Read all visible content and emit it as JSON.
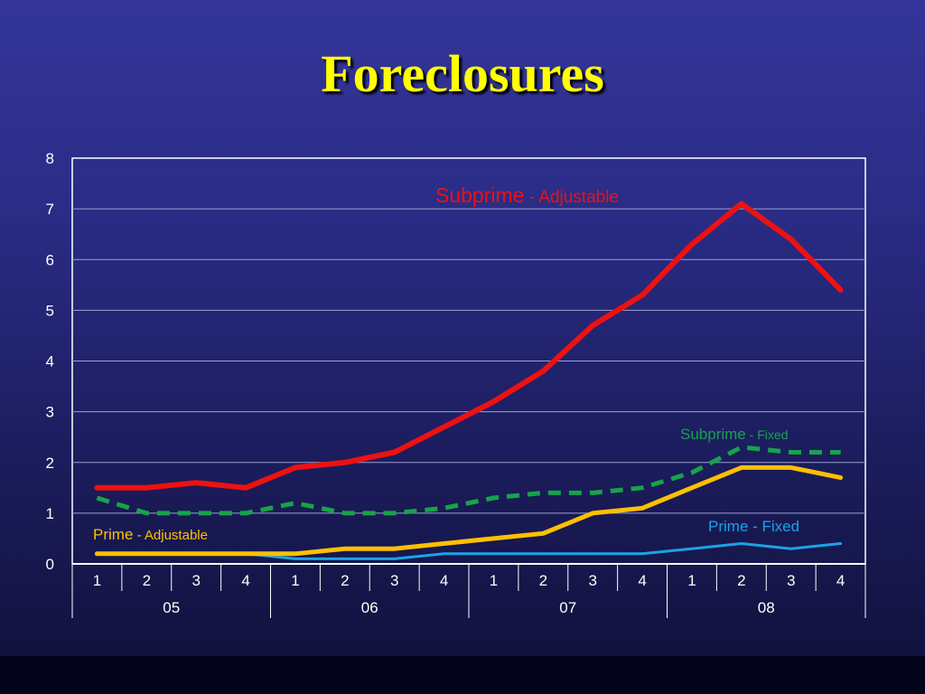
{
  "title": "Foreclosures",
  "chart_data": {
    "type": "line",
    "title": "Foreclosures",
    "x_quarters": [
      "1",
      "2",
      "3",
      "4",
      "1",
      "2",
      "3",
      "4",
      "1",
      "2",
      "3",
      "4",
      "1",
      "2",
      "3",
      "4"
    ],
    "x_years": [
      "05",
      "06",
      "07",
      "08"
    ],
    "ylim": [
      0,
      8
    ],
    "yticks": [
      "0",
      "1",
      "2",
      "3",
      "4",
      "5",
      "6",
      "7",
      "8"
    ],
    "grid": true,
    "series": [
      {
        "name_main": "Subprime",
        "name_sub": " - Adjustable",
        "color": "#ee1111",
        "dash": false,
        "width": 6,
        "values": [
          1.5,
          1.5,
          1.6,
          1.5,
          1.9,
          2.0,
          2.2,
          2.7,
          3.2,
          3.8,
          4.7,
          5.3,
          6.3,
          7.1,
          6.4,
          5.4
        ]
      },
      {
        "name_main": "Subprime",
        "name_sub": " - Fixed",
        "color": "#17a34a",
        "dash": true,
        "width": 5,
        "values": [
          1.3,
          1.0,
          1.0,
          1.0,
          1.2,
          1.0,
          1.0,
          1.1,
          1.3,
          1.4,
          1.4,
          1.5,
          1.8,
          2.3,
          2.2,
          2.2
        ]
      },
      {
        "name_main": "Prime",
        "name_sub": " - Adjustable",
        "color": "#ffc000",
        "dash": false,
        "width": 5,
        "values": [
          0.2,
          0.2,
          0.2,
          0.2,
          0.2,
          0.3,
          0.3,
          0.4,
          0.5,
          0.6,
          1.0,
          1.1,
          1.5,
          1.9,
          1.9,
          1.7
        ]
      },
      {
        "name_main": "Prime",
        "name_sub": " - Fixed",
        "color": "#1aa3e8",
        "dash": false,
        "width": 3,
        "values": [
          0.2,
          0.2,
          0.2,
          0.2,
          0.1,
          0.1,
          0.1,
          0.2,
          0.2,
          0.2,
          0.2,
          0.2,
          0.3,
          0.4,
          0.3,
          0.4
        ]
      }
    ]
  }
}
